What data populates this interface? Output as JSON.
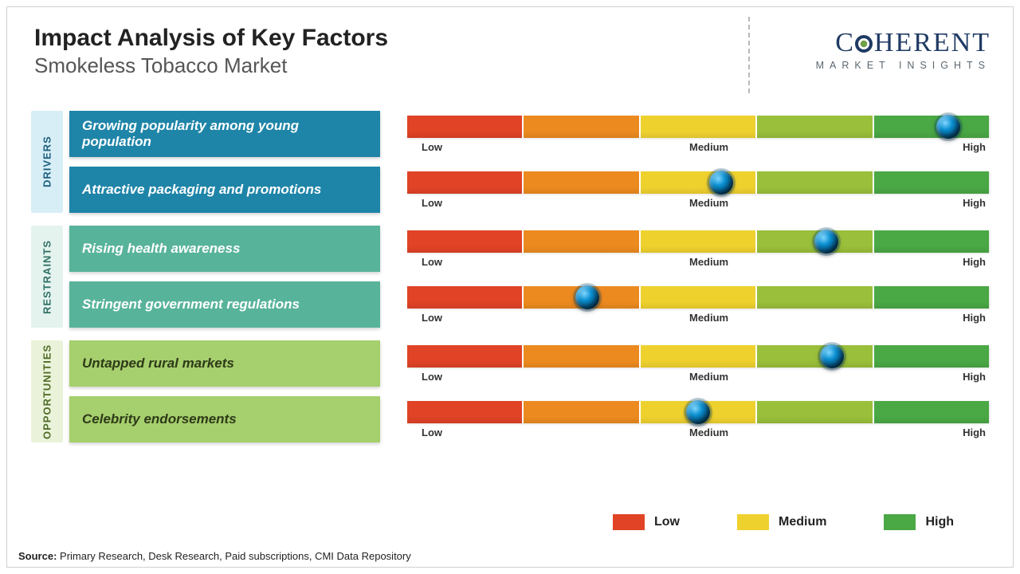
{
  "title": "Impact Analysis of Key Factors",
  "subtitle": "Smokeless Tobacco Market",
  "logo": {
    "brand_left": "C",
    "brand_right": "HERENT",
    "tagline": "MARKET INSIGHTS"
  },
  "scale_labels": {
    "low": "Low",
    "medium": "Medium",
    "high": "High"
  },
  "scale_segment_colors": [
    "#e04326",
    "#ec8a1f",
    "#efd12e",
    "#9abf3a",
    "#4aa845"
  ],
  "categories": [
    {
      "name": "DRIVERS",
      "tab_bg": "#d7eef6",
      "tab_fg": "#1c5f7f",
      "factor_bg": "#1f85a8",
      "factors": [
        {
          "label": "Growing popularity among young population",
          "marker_pct": 93
        },
        {
          "label": "Attractive packaging and promotions",
          "marker_pct": 54
        }
      ]
    },
    {
      "name": "RESTRAINTS",
      "tab_bg": "#e5f3ef",
      "tab_fg": "#2f7064",
      "factor_bg": "#58b39b",
      "factors": [
        {
          "label": "Rising health awareness",
          "marker_pct": 72
        },
        {
          "label": "Stringent government regulations",
          "marker_pct": 31
        }
      ]
    },
    {
      "name": "OPPORTUNITIES",
      "tab_bg": "#eaf3d9",
      "tab_fg": "#4f6b28",
      "factor_bg": "#a6cf6d",
      "factors": [
        {
          "label": "Untapped rural markets",
          "marker_pct": 73
        },
        {
          "label": "Celebrity endorsements",
          "marker_pct": 50
        }
      ]
    }
  ],
  "legend": [
    {
      "label": "Low",
      "color": "#e04326"
    },
    {
      "label": "Medium",
      "color": "#efd12e"
    },
    {
      "label": "High",
      "color": "#4aa845"
    }
  ],
  "source_label": "Source:",
  "source_text": "Primary Research, Desk Research, Paid subscriptions, CMI Data Repository"
}
